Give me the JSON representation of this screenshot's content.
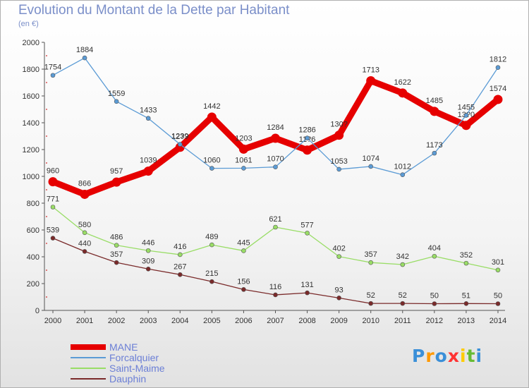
{
  "chart_data": {
    "type": "line",
    "title": "Evolution du Montant de la Dette par Habitant",
    "subtitle": "(en €)",
    "x": [
      "2000",
      "2001",
      "2002",
      "2003",
      "2004",
      "2005",
      "2006",
      "2007",
      "2008",
      "2009",
      "2010",
      "2011",
      "2012",
      "2013",
      "2014"
    ],
    "ylim": [
      0,
      2000
    ],
    "yticks": [
      "0",
      "200",
      "400",
      "600",
      "800",
      "1000",
      "1200",
      "1400",
      "1600",
      "1800",
      "2000"
    ],
    "grid": false,
    "legend_position": "bottom-left",
    "series": [
      {
        "name": "MANE",
        "color": "#e60000",
        "values": [
          960,
          866,
          957,
          1039,
          1217,
          1442,
          1203,
          1284,
          1196,
          1307,
          1713,
          1622,
          1485,
          1380,
          1574
        ],
        "labels": [
          "960",
          "866",
          "957",
          "1039",
          "12??",
          "1442",
          "1203",
          "1284",
          "11?6",
          "130?",
          "1713",
          "1622",
          "1485",
          "13?0",
          "1574"
        ]
      },
      {
        "name": "Forcalquier",
        "color": "#5b9bd5",
        "values": [
          1754,
          1884,
          1559,
          1433,
          1239,
          1060,
          1061,
          1070,
          1286,
          1053,
          1074,
          1012,
          1173,
          1455,
          1812
        ],
        "labels": [
          "1754",
          "1884",
          "1559",
          "1433",
          "1239",
          "1060",
          "1061",
          "1070",
          "1286",
          "1053",
          "1074",
          "1012",
          "1173",
          "1455",
          "1812"
        ]
      },
      {
        "name": "Saint-Maime",
        "color": "#99dd66",
        "values": [
          771,
          580,
          486,
          446,
          416,
          489,
          445,
          621,
          577,
          402,
          357,
          342,
          404,
          352,
          301
        ],
        "labels": [
          "771",
          "580",
          "486",
          "446",
          "416",
          "489",
          "445",
          "621",
          "577",
          "402",
          "357",
          "342",
          "404",
          "352",
          "301"
        ]
      },
      {
        "name": "Dauphin",
        "color": "#7a2a2a",
        "values": [
          539,
          440,
          357,
          309,
          267,
          215,
          156,
          116,
          131,
          93,
          52,
          52,
          50,
          51,
          50
        ],
        "labels": [
          "539",
          "440",
          "357",
          "309",
          "267",
          "215",
          "156",
          "116",
          "131",
          "93",
          "52",
          "52",
          "50",
          "51",
          "50"
        ]
      }
    ]
  },
  "logo": {
    "letters": [
      "P",
      "r",
      "o",
      "x",
      "i",
      "t",
      "i"
    ],
    "colors": [
      "#3a8fd8",
      "#ff9900",
      "#3a8fd8",
      "#ff3333",
      "#ffcc00",
      "#66bb33",
      "#3a8fd8"
    ]
  }
}
